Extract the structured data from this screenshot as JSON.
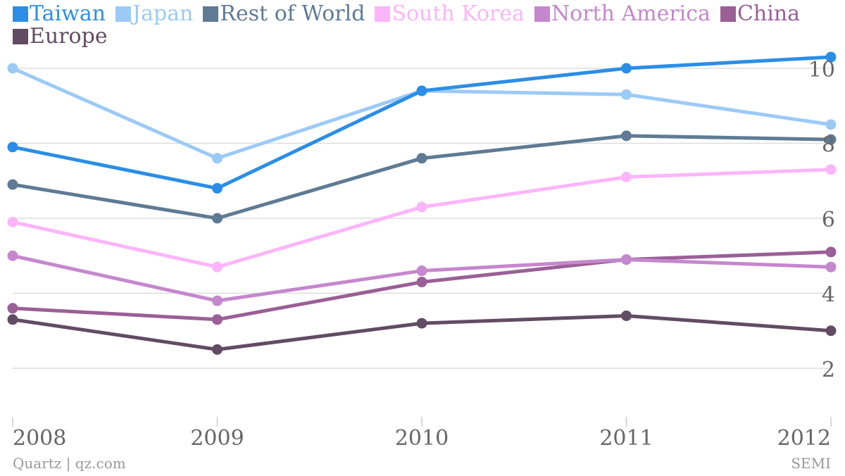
{
  "chart_data": {
    "type": "line",
    "title": "",
    "xlabel": "",
    "ylabel": "",
    "x": [
      "2008",
      "2009",
      "2010",
      "2011",
      "2012"
    ],
    "ylim": [
      0,
      11
    ],
    "yticks": [
      2,
      4,
      6,
      8,
      10
    ],
    "grid": true,
    "legend_position": "top-left",
    "series": [
      {
        "name": "Taiwan",
        "color": "#2b8ee6",
        "values": [
          7.9,
          6.8,
          9.4,
          10.0,
          10.3
        ]
      },
      {
        "name": "Japan",
        "color": "#9ccaf7",
        "values": [
          10.0,
          7.6,
          9.4,
          9.3,
          8.5
        ]
      },
      {
        "name": "Rest of World",
        "color": "#5f7a94",
        "values": [
          6.9,
          6.0,
          7.6,
          8.2,
          8.1
        ]
      },
      {
        "name": "South Korea",
        "color": "#fcb5fb",
        "values": [
          5.9,
          4.7,
          6.3,
          7.1,
          7.3
        ]
      },
      {
        "name": "North America",
        "color": "#c587cd",
        "values": [
          5.0,
          3.8,
          4.6,
          4.9,
          4.7
        ]
      },
      {
        "name": "China",
        "color": "#9a5f97",
        "values": [
          3.6,
          3.3,
          4.3,
          4.9,
          5.1
        ]
      },
      {
        "name": "Europe",
        "color": "#614c63",
        "values": [
          3.3,
          2.5,
          3.2,
          3.4,
          3.0
        ]
      }
    ]
  },
  "footer": {
    "source_left": "Quartz | qz.com",
    "source_right": "SEMI"
  }
}
